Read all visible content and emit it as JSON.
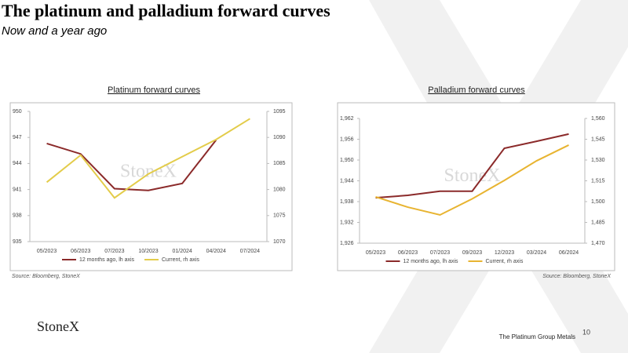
{
  "slide": {
    "title": "The platinum and palladium forward curves",
    "subtitle": "Now and a year ago",
    "watermark": "StoneX",
    "logo": "StoneX",
    "footer": "The Platinum Group Metals",
    "page_number": "10"
  },
  "chart_data": [
    {
      "type": "line",
      "title": "Platinum forward curves",
      "source": "Source: Bloomberg, StoneX",
      "categories": [
        "05/2023",
        "06/2023",
        "07/2023",
        "10/2023",
        "01/2024",
        "04/2024",
        "07/2024"
      ],
      "series": [
        {
          "name": "12 months ago, lh axis",
          "color": "#8b2a2a",
          "values": [
            946.3,
            945.1,
            941.1,
            940.9,
            941.7,
            946.7,
            null
          ]
        },
        {
          "name": "Current, rh axis",
          "color": "#e3cc4a",
          "axis": "y2",
          "values": [
            1081.4,
            1086.6,
            1078.4,
            1083.0,
            1086.3,
            1089.6,
            1093.6
          ]
        }
      ],
      "ylim": [
        935,
        950
      ],
      "yticks": [
        935,
        938,
        941,
        944,
        947,
        950
      ],
      "y2lim": [
        1070,
        1095
      ],
      "y2ticks": [
        1070,
        1075,
        1080,
        1085,
        1090,
        1095
      ],
      "legend": "bottom"
    },
    {
      "type": "line",
      "title": "Palladium forward curves",
      "source": "Source: Bloomberg, StoneX",
      "categories": [
        "05/2023",
        "06/2023",
        "07/2023",
        "09/2023",
        "12/2023",
        "03/2024",
        "06/2024"
      ],
      "series": [
        {
          "name": "12 months ago, lh axis",
          "color": "#8b2a2a",
          "values": [
            1939.1,
            1939.8,
            1941.0,
            1941.0,
            1953.4,
            1955.4,
            1957.5
          ]
        },
        {
          "name": "Current, rh axis",
          "color": "#e8b431",
          "axis": "y2",
          "values": [
            1503.4,
            1496.0,
            1490.4,
            1502.0,
            1515.3,
            1529.4,
            1540.8
          ]
        }
      ],
      "ylim": [
        1926,
        1962
      ],
      "yticks": [
        {
          "value": 1926,
          "label": "1,926"
        },
        {
          "value": 1932,
          "label": "1,932"
        },
        {
          "value": 1938,
          "label": "1,938"
        },
        {
          "value": 1944,
          "label": "1,944"
        },
        {
          "value": 1950,
          "label": "1,950"
        },
        {
          "value": 1956,
          "label": "1,956"
        },
        {
          "value": 1962,
          "label": "1,962"
        }
      ],
      "y2lim": [
        1470,
        1560
      ],
      "y2ticks": [
        {
          "value": 1470,
          "label": "1,470"
        },
        {
          "value": 1485,
          "label": "1,485"
        },
        {
          "value": 1500,
          "label": "1,500"
        },
        {
          "value": 1515,
          "label": "1,515"
        },
        {
          "value": 1530,
          "label": "1,530"
        },
        {
          "value": 1545,
          "label": "1,545"
        },
        {
          "value": 1560,
          "label": "1,560"
        }
      ],
      "legend": "bottom"
    }
  ]
}
